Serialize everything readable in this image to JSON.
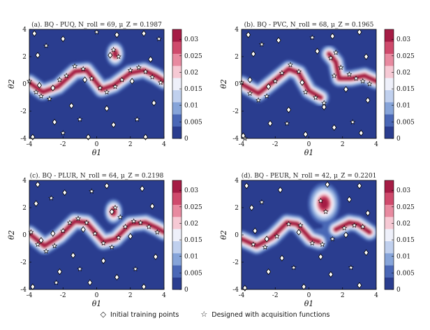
{
  "figure": {
    "legend": {
      "initial_label": "Initial training points",
      "designed_label": "Designed with acquisition functions",
      "initial_symbol": "◇",
      "designed_symbol": "☆"
    }
  },
  "chart_data": [
    {
      "type": "heatmap",
      "title": "(a). BQ - PUQ, N_roll = 69, μ_Z = 0.1987",
      "title_parts": {
        "prefix": "(a). BQ − PUQ, ",
        "n_label": "N",
        "n_sub": "roll",
        "n_value": " = 69, ",
        "mu_label": "μ",
        "mu_sub": "Z",
        "mu_value": " = 0.1987"
      },
      "xlabel": "θ1",
      "ylabel": "θ2",
      "xlim": [
        -4,
        4
      ],
      "ylim": [
        -4,
        4
      ],
      "xticks": [
        "-4",
        "-2",
        "0",
        "2",
        "4"
      ],
      "yticks": [
        "-4",
        "-2",
        "0",
        "2",
        "4"
      ],
      "colorbar": {
        "range": [
          0,
          0.033
        ],
        "ticks": [
          "0",
          "0.005",
          "0.01",
          "0.015",
          "0.02",
          "0.025",
          "0.03"
        ]
      },
      "initial_points": [
        [
          -3.7,
          3.7
        ],
        [
          -2.0,
          3.3
        ],
        [
          1.2,
          3.6
        ],
        [
          2.8,
          3.7
        ],
        [
          -3.5,
          2.1
        ],
        [
          0.8,
          2.1
        ],
        [
          3.2,
          1.8
        ],
        [
          -2.6,
          -0.3
        ],
        [
          -0.7,
          0.3
        ],
        [
          2.1,
          0.2
        ],
        [
          -1.5,
          -1.6
        ],
        [
          0.6,
          -1.8
        ],
        [
          3.4,
          -1.4
        ],
        [
          -3.8,
          -3.9
        ],
        [
          -2.5,
          -2.8
        ],
        [
          -0.5,
          -3.9
        ],
        [
          1.0,
          -3.0
        ],
        [
          2.9,
          -3.9
        ],
        [
          -3.4,
          -0.1
        ]
      ],
      "designed_points": [
        [
          -4.0,
          0.2
        ],
        [
          -3.6,
          -0.6
        ],
        [
          -3.3,
          -0.9
        ],
        [
          -2.8,
          -1.1
        ],
        [
          -2.2,
          0.3
        ],
        [
          -1.8,
          0.6
        ],
        [
          -1.3,
          1.3
        ],
        [
          -0.8,
          1.1
        ],
        [
          -0.3,
          0.4
        ],
        [
          0.2,
          -0.3
        ],
        [
          0.6,
          -0.6
        ],
        [
          1.1,
          -0.2
        ],
        [
          1.5,
          0.3
        ],
        [
          2.0,
          1.0
        ],
        [
          2.5,
          1.2
        ],
        [
          2.9,
          0.9
        ],
        [
          3.3,
          0.5
        ],
        [
          3.8,
          0.1
        ],
        [
          1.0,
          2.5
        ],
        [
          1.3,
          2.0
        ],
        [
          -3.0,
          2.8
        ],
        [
          0.0,
          3.8
        ],
        [
          -1.0,
          -2.6
        ],
        [
          2.4,
          -2.6
        ],
        [
          -2.0,
          -3.6
        ],
        [
          3.7,
          3.3
        ]
      ],
      "ridge": [
        [
          -4,
          0.1
        ],
        [
          -3.2,
          -0.6
        ],
        [
          -2.3,
          -0.2
        ],
        [
          -1.3,
          0.9
        ],
        [
          -0.6,
          1.0
        ],
        [
          0.3,
          -0.4
        ],
        [
          1.0,
          -0.1
        ],
        [
          2.0,
          0.8
        ],
        [
          2.8,
          1.0
        ],
        [
          3.5,
          0.6
        ],
        [
          4,
          0.2
        ]
      ],
      "blobs": [
        [
          1.1,
          2.2,
          0.3,
          0.5
        ]
      ]
    },
    {
      "type": "heatmap",
      "title": "(b). BQ - PVC, N_roll = 68, μ_Z = 0.1965",
      "title_parts": {
        "prefix": "(b). BQ − PVC, ",
        "n_label": "N",
        "n_sub": "roll",
        "n_value": " = 68, ",
        "mu_label": "μ",
        "mu_sub": "Z",
        "mu_value": " = 0.1965"
      },
      "xlabel": "θ1",
      "ylabel": "θ2",
      "xlim": [
        -4,
        4
      ],
      "ylim": [
        -4,
        4
      ],
      "xticks": [
        "-4",
        "-2",
        "0",
        "2",
        "4"
      ],
      "yticks": [
        "-4",
        "-2",
        "0",
        "2",
        "4"
      ],
      "colorbar": {
        "range": [
          0,
          0.033
        ],
        "ticks": [
          "0",
          "0.005",
          "0.01",
          "0.015",
          "0.02",
          "0.025",
          "0.03"
        ]
      },
      "initial_points": [
        [
          -3.6,
          3.6
        ],
        [
          -1.8,
          3.2
        ],
        [
          1.4,
          3.5
        ],
        [
          3.0,
          3.8
        ],
        [
          -3.3,
          2.2
        ],
        [
          0.5,
          2.4
        ],
        [
          3.4,
          2.0
        ],
        [
          -2.4,
          -0.2
        ],
        [
          -0.4,
          0.1
        ],
        [
          2.2,
          -0.4
        ],
        [
          -1.2,
          -1.9
        ],
        [
          0.9,
          -1.7
        ],
        [
          3.5,
          -1.2
        ],
        [
          -3.9,
          -3.8
        ],
        [
          -2.3,
          -2.9
        ],
        [
          -0.2,
          -3.7
        ],
        [
          1.5,
          -3.2
        ],
        [
          3.1,
          -3.6
        ],
        [
          -3.5,
          0.3
        ]
      ],
      "designed_points": [
        [
          -4.0,
          0.1
        ],
        [
          -3.5,
          -0.7
        ],
        [
          -3.0,
          -1.2
        ],
        [
          -2.5,
          -0.9
        ],
        [
          -2.0,
          0.2
        ],
        [
          -1.6,
          0.8
        ],
        [
          -1.1,
          1.4
        ],
        [
          -0.6,
          0.9
        ],
        [
          -0.2,
          -0.6
        ],
        [
          0.4,
          -1.0
        ],
        [
          0.9,
          -1.4
        ],
        [
          1.3,
          1.9
        ],
        [
          1.6,
          2.3
        ],
        [
          1.9,
          1.2
        ],
        [
          1.5,
          0.6
        ],
        [
          2.4,
          0.7
        ],
        [
          2.8,
          0.4
        ],
        [
          3.2,
          0.2
        ],
        [
          3.6,
          0.0
        ],
        [
          -2.8,
          2.9
        ],
        [
          0.2,
          3.4
        ],
        [
          -1.3,
          -2.9
        ],
        [
          2.6,
          -2.8
        ],
        [
          -3.8,
          -4.0
        ]
      ],
      "ridge": [
        [
          -4,
          0.0
        ],
        [
          -3.0,
          -0.7
        ],
        [
          -2.0,
          0.3
        ],
        [
          -1.2,
          1.1
        ],
        [
          -0.6,
          0.8
        ],
        [
          0.0,
          -0.5
        ],
        [
          0.7,
          -1.0
        ]
      ],
      "ridge2": [
        [
          1.2,
          2.2
        ],
        [
          1.6,
          1.6
        ],
        [
          1.8,
          0.4
        ],
        [
          2.5,
          0.4
        ],
        [
          3.3,
          0.6
        ],
        [
          4,
          0.2
        ]
      ],
      "blobs": []
    },
    {
      "type": "heatmap",
      "title": "(c). BQ - PLUR, N_roll = 64, μ_Z = 0.2198",
      "title_parts": {
        "prefix": "(c). BQ − PLUR, ",
        "n_label": "N",
        "n_sub": "roll",
        "n_value": " = 64, ",
        "mu_label": "μ",
        "mu_sub": "Z",
        "mu_value": " = 0.2198"
      },
      "xlabel": "θ1",
      "ylabel": "θ2",
      "xlim": [
        -4,
        4
      ],
      "ylim": [
        -4,
        4
      ],
      "xticks": [
        "-4",
        "-2",
        "0",
        "2",
        "4"
      ],
      "yticks": [
        "-4",
        "-2",
        "0",
        "2",
        "4"
      ],
      "colorbar": {
        "range": [
          0,
          0.033
        ],
        "ticks": [
          "0",
          "0.005",
          "0.01",
          "0.015",
          "0.02",
          "0.025",
          "0.03"
        ]
      },
      "initial_points": [
        [
          -3.5,
          3.7
        ],
        [
          -1.9,
          3.1
        ],
        [
          0.6,
          3.6
        ],
        [
          2.7,
          3.4
        ],
        [
          -3.6,
          2.3
        ],
        [
          0.9,
          1.7
        ],
        [
          3.3,
          2.1
        ],
        [
          -2.6,
          0.1
        ],
        [
          -0.8,
          0.4
        ],
        [
          2.0,
          -0.1
        ],
        [
          -1.4,
          -1.5
        ],
        [
          0.4,
          -1.9
        ],
        [
          3.5,
          -1.6
        ],
        [
          -3.8,
          -3.8
        ],
        [
          -2.2,
          -2.7
        ],
        [
          -0.4,
          -3.5
        ],
        [
          1.2,
          -3.1
        ],
        [
          2.8,
          -3.8
        ],
        [
          -3.3,
          -0.4
        ]
      ],
      "designed_points": [
        [
          -3.9,
          0.2
        ],
        [
          -3.5,
          -0.7
        ],
        [
          -3.0,
          -1.2
        ],
        [
          -2.5,
          -0.8
        ],
        [
          -2.0,
          0.3
        ],
        [
          -1.6,
          0.9
        ],
        [
          -1.1,
          1.2
        ],
        [
          -0.6,
          0.9
        ],
        [
          -0.1,
          0.1
        ],
        [
          0.4,
          -0.6
        ],
        [
          0.9,
          -0.9
        ],
        [
          1.3,
          -0.2
        ],
        [
          1.7,
          0.6
        ],
        [
          2.2,
          1.0
        ],
        [
          2.6,
          0.9
        ],
        [
          3.1,
          0.6
        ],
        [
          3.6,
          0.2
        ],
        [
          1.1,
          2.0
        ],
        [
          1.4,
          1.3
        ],
        [
          -2.7,
          2.7
        ],
        [
          -0.3,
          3.2
        ],
        [
          -1.0,
          -2.5
        ],
        [
          2.3,
          -2.5
        ],
        [
          -2.4,
          -3.5
        ]
      ],
      "ridge": [
        [
          -4,
          0.1
        ],
        [
          -3.1,
          -0.8
        ],
        [
          -2.2,
          -0.1
        ],
        [
          -1.3,
          1.0
        ],
        [
          -0.6,
          0.9
        ],
        [
          0.4,
          -0.5
        ],
        [
          1.1,
          -0.3
        ],
        [
          2.0,
          0.8
        ],
        [
          2.9,
          0.9
        ],
        [
          3.6,
          0.5
        ],
        [
          4,
          0.2
        ]
      ],
      "blobs": [
        [
          1.0,
          1.7,
          0.3,
          0.5
        ]
      ]
    },
    {
      "type": "heatmap",
      "title": "(d). BQ - PEUR, N_roll = 42, μ_Z = 0.2201",
      "title_parts": {
        "prefix": "(d). BQ − PEUR, ",
        "n_label": "N",
        "n_sub": "roll",
        "n_value": " = 42, ",
        "mu_label": "μ",
        "mu_sub": "Z",
        "mu_value": " = 0.2201"
      },
      "xlabel": "θ1",
      "ylabel": "θ2",
      "xlim": [
        -4,
        4
      ],
      "ylim": [
        -4,
        4
      ],
      "xticks": [
        "-4",
        "-2",
        "0",
        "2",
        "4"
      ],
      "yticks": [
        "-4",
        "-2",
        "0",
        "2",
        "4"
      ],
      "colorbar": {
        "range": [
          0,
          0.033
        ],
        "ticks": [
          "0",
          "0.005",
          "0.01",
          "0.015",
          "0.02",
          "0.025",
          "0.03"
        ]
      },
      "initial_points": [
        [
          -3.7,
          3.6
        ],
        [
          -1.7,
          3.3
        ],
        [
          1.1,
          3.7
        ],
        [
          3.0,
          3.6
        ],
        [
          -3.4,
          2.0
        ],
        [
          2.4,
          2.6
        ],
        [
          3.5,
          1.6
        ],
        [
          -2.5,
          -0.3
        ],
        [
          -0.6,
          0.2
        ],
        [
          2.2,
          0.0
        ],
        [
          -1.6,
          -1.7
        ],
        [
          0.7,
          -1.6
        ],
        [
          3.4,
          -1.3
        ],
        [
          -3.8,
          -3.9
        ],
        [
          -2.4,
          -2.7
        ],
        [
          -0.3,
          -3.8
        ],
        [
          1.3,
          -2.9
        ],
        [
          3.0,
          -3.7
        ],
        [
          -3.2,
          0.3
        ]
      ],
      "designed_points": [
        [
          -3.3,
          -0.7
        ],
        [
          -2.6,
          -0.9
        ],
        [
          -1.9,
          -0.1
        ],
        [
          -1.2,
          0.8
        ],
        [
          -0.5,
          0.7
        ],
        [
          0.2,
          -0.6
        ],
        [
          0.8,
          -0.7
        ],
        [
          1.4,
          -0.3
        ],
        [
          2.1,
          0.5
        ],
        [
          2.7,
          0.7
        ],
        [
          3.2,
          0.6
        ],
        [
          0.7,
          2.5
        ],
        [
          1.0,
          1.7
        ],
        [
          -2.8,
          2.4
        ],
        [
          -0.9,
          -2.4
        ],
        [
          2.5,
          -2.4
        ]
      ],
      "ridge": [
        [
          -4,
          -0.3
        ],
        [
          -3.1,
          -0.8
        ],
        [
          -2.2,
          -0.2
        ],
        [
          -1.3,
          0.9
        ],
        [
          -0.7,
          0.8
        ],
        [
          0.1,
          -0.3
        ],
        [
          0.6,
          -0.5
        ]
      ],
      "ridge2": [
        [
          1.6,
          0.4
        ],
        [
          2.4,
          0.9
        ],
        [
          2.9,
          0.8
        ],
        [
          3.6,
          0.2
        ]
      ],
      "blobs": [
        [
          0.9,
          2.3,
          0.5,
          0.8
        ]
      ],
      "bridge": true
    }
  ]
}
